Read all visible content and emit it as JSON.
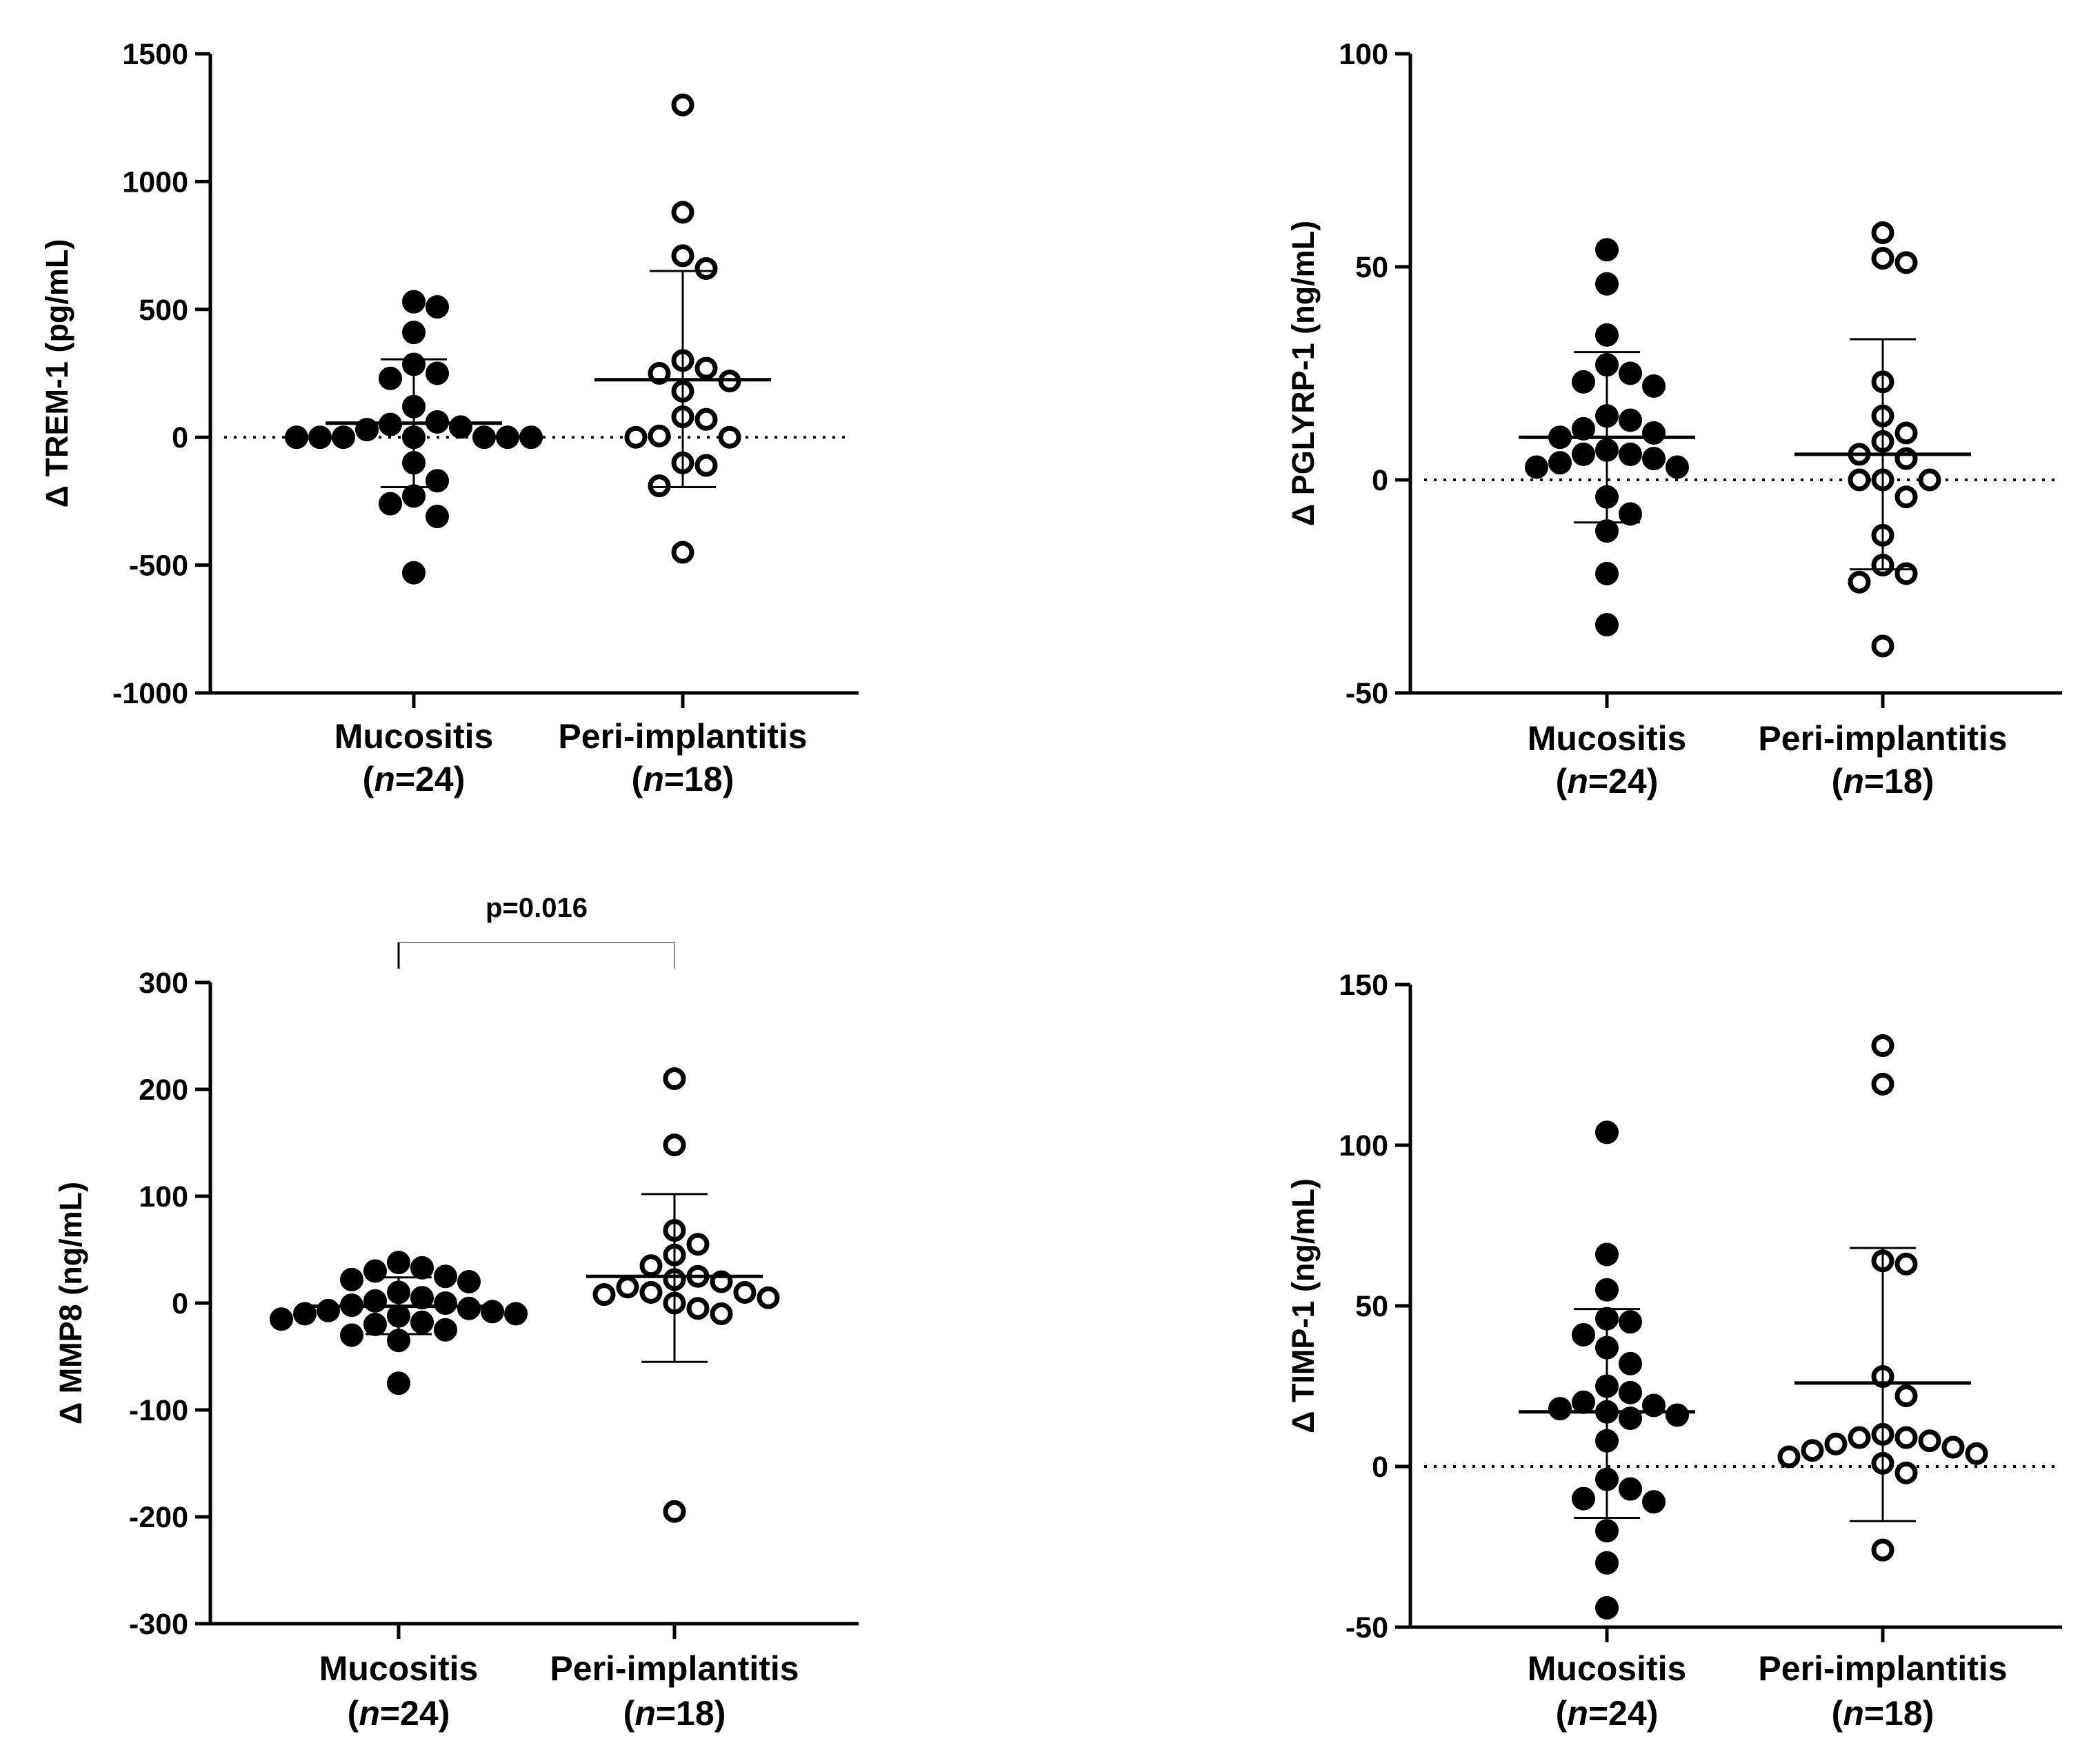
{
  "chart_data": [
    {
      "type": "scatter",
      "ylabel": "Δ TREM-1 (pg/mL)",
      "ylim": [
        -1000,
        1500
      ],
      "yticks": [
        -1000,
        -500,
        0,
        500,
        1000,
        1500
      ],
      "zero_line": true,
      "significance": null,
      "groups": [
        {
          "name": "Mucositis",
          "n_label": "=24",
          "filled": true,
          "mean": 55,
          "sd_low": -195,
          "sd_high": 305,
          "values": [
            530,
            510,
            410,
            285,
            250,
            230,
            120,
            60,
            50,
            40,
            30,
            0,
            0,
            0,
            0,
            0,
            0,
            0,
            -100,
            -170,
            -230,
            -260,
            -310,
            -530
          ]
        },
        {
          "name": "Peri-implantitis",
          "n_label": "=18",
          "filled": false,
          "mean": 225,
          "sd_low": -195,
          "sd_high": 650,
          "values": [
            1300,
            880,
            710,
            660,
            300,
            270,
            250,
            220,
            180,
            80,
            70,
            5,
            0,
            0,
            -100,
            -110,
            -190,
            -450
          ]
        }
      ]
    },
    {
      "type": "scatter",
      "ylabel": "Δ PGLYRP-1 (ng/mL)",
      "ylim": [
        -50,
        100
      ],
      "yticks": [
        -50,
        0,
        50,
        100
      ],
      "zero_line": true,
      "significance": null,
      "groups": [
        {
          "name": "Mucositis",
          "n_label": "=24",
          "filled": true,
          "mean": 10,
          "sd_low": -10,
          "sd_high": 30,
          "values": [
            54,
            46,
            34,
            27,
            25,
            23,
            22,
            15,
            14,
            12,
            11,
            10,
            7,
            6,
            6,
            5,
            4,
            3,
            3,
            -4,
            -8,
            -12,
            -22,
            -34
          ]
        },
        {
          "name": "Peri-implantitis",
          "n_label": "=18",
          "filled": false,
          "mean": 6,
          "sd_low": -21,
          "sd_high": 33,
          "values": [
            58,
            52,
            51,
            23,
            15,
            11,
            9,
            6,
            5,
            0,
            0,
            -4,
            -13,
            -20,
            -22,
            -24,
            -39,
            0
          ]
        }
      ]
    },
    {
      "type": "scatter",
      "ylabel": "Δ MMP8 (ng/mL)",
      "ylim": [
        -300,
        300
      ],
      "yticks": [
        -300,
        -200,
        -100,
        0,
        100,
        200,
        300
      ],
      "zero_line": false,
      "significance": "p=0.016",
      "groups": [
        {
          "name": "Mucositis",
          "n_label": "=24",
          "filled": true,
          "mean": -3,
          "sd_low": -29,
          "sd_high": 24,
          "values": [
            38,
            33,
            30,
            25,
            22,
            20,
            10,
            5,
            2,
            0,
            -2,
            -5,
            -7,
            -8,
            -10,
            -10,
            -12,
            -15,
            -18,
            -20,
            -25,
            -30,
            -35,
            -75
          ]
        },
        {
          "name": "Peri-implantitis",
          "n_label": "=18",
          "filled": false,
          "mean": 25,
          "sd_low": -55,
          "sd_high": 102,
          "values": [
            210,
            148,
            68,
            55,
            45,
            35,
            25,
            22,
            20,
            15,
            10,
            10,
            8,
            5,
            0,
            -5,
            -10,
            -195
          ]
        }
      ]
    },
    {
      "type": "scatter",
      "ylabel": "Δ TIMP-1 (ng/mL)",
      "ylim": [
        -50,
        150
      ],
      "yticks": [
        -50,
        0,
        50,
        100,
        150
      ],
      "zero_line": true,
      "significance": null,
      "groups": [
        {
          "name": "Mucositis",
          "n_label": "=24",
          "filled": true,
          "mean": 17,
          "sd_low": -16,
          "sd_high": 49,
          "values": [
            104,
            66,
            55,
            46,
            45,
            41,
            37,
            32,
            25,
            23,
            20,
            19,
            18,
            17,
            16,
            15,
            8,
            -4,
            -7,
            -10,
            -11,
            -20,
            -30,
            -44
          ]
        },
        {
          "name": "Peri-implantitis",
          "n_label": "=18",
          "filled": false,
          "mean": 26,
          "sd_low": -17,
          "sd_high": 68,
          "values": [
            131,
            119,
            64,
            63,
            28,
            22,
            10,
            9,
            9,
            8,
            7,
            6,
            5,
            4,
            3,
            1,
            -2,
            -26
          ]
        }
      ]
    }
  ]
}
